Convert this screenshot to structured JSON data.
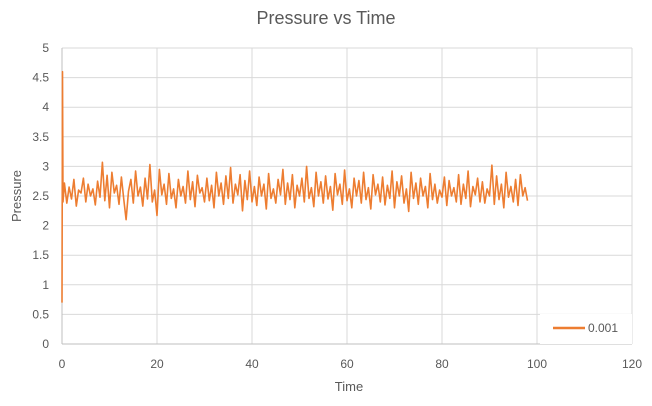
{
  "chart_data": {
    "type": "line",
    "title": "Pressure vs Time",
    "xlabel": "Time",
    "ylabel": "Pressure",
    "xlim": [
      0,
      120
    ],
    "ylim": [
      0,
      5
    ],
    "xticks": [
      "0",
      "20",
      "40",
      "60",
      "80",
      "100",
      "120"
    ],
    "yticks": [
      "0",
      "0.5",
      "1",
      "1.5",
      "2",
      "2.5",
      "3",
      "3.5",
      "4",
      "4.5",
      "5"
    ],
    "grid": true,
    "legend_position": "bottom-right",
    "series": [
      {
        "name": "0.001",
        "color": "#ED7D31",
        "x_start": 0.5,
        "x_step": 0.5,
        "initial_points": [
          [
            0,
            0.7
          ],
          [
            0.1,
            4.6
          ],
          [
            0.2,
            2.4
          ]
        ],
        "values": [
          2.72,
          2.38,
          2.65,
          2.45,
          2.78,
          2.33,
          2.6,
          2.55,
          2.8,
          2.4,
          2.7,
          2.5,
          2.62,
          2.35,
          2.75,
          2.48,
          3.07,
          2.42,
          2.85,
          2.3,
          2.9,
          2.55,
          2.68,
          2.36,
          2.82,
          2.44,
          2.1,
          2.58,
          2.78,
          2.38,
          2.92,
          2.5,
          2.65,
          2.33,
          2.8,
          2.45,
          3.03,
          2.4,
          2.6,
          2.17,
          2.95,
          2.52,
          2.7,
          2.36,
          2.88,
          2.46,
          2.62,
          2.3,
          2.78,
          2.5,
          2.66,
          2.38,
          2.92,
          2.44,
          2.74,
          2.32,
          2.85,
          2.55,
          2.64,
          2.4,
          2.8,
          2.42,
          2.68,
          2.3,
          2.9,
          2.5,
          2.72,
          2.36,
          2.84,
          2.46,
          2.98,
          2.38,
          2.7,
          2.52,
          2.86,
          2.25,
          2.76,
          2.44,
          2.92,
          2.4,
          2.66,
          2.34,
          2.82,
          2.5,
          2.7,
          2.28,
          2.88,
          2.46,
          2.62,
          2.38,
          2.78,
          2.52,
          2.95,
          2.36,
          2.72,
          2.44,
          2.86,
          2.3,
          2.68,
          2.5,
          2.8,
          2.4,
          3.0,
          2.46,
          2.64,
          2.32,
          2.9,
          2.5,
          2.74,
          2.38,
          2.84,
          2.45,
          2.66,
          2.26,
          2.88,
          2.52,
          2.7,
          2.36,
          2.94,
          2.42,
          2.62,
          2.3,
          2.8,
          2.5,
          2.76,
          2.38,
          2.9,
          2.44,
          2.64,
          2.28,
          2.86,
          2.52,
          2.7,
          2.4,
          2.82,
          2.35,
          2.68,
          2.46,
          2.92,
          2.3,
          2.74,
          2.5,
          2.84,
          2.38,
          2.62,
          2.24,
          2.9,
          2.46,
          2.72,
          2.36,
          2.8,
          2.5,
          2.66,
          2.3,
          2.88,
          2.44,
          2.7,
          2.38,
          2.6,
          2.48,
          2.82,
          2.34,
          2.76,
          2.5,
          2.64,
          2.4,
          2.86,
          2.36,
          2.7,
          2.46,
          2.92,
          2.32,
          2.66,
          2.52,
          2.8,
          2.4,
          2.74,
          2.38,
          2.62,
          2.5,
          3.02,
          2.36,
          2.84,
          2.44,
          2.7,
          2.3,
          2.9,
          2.48,
          2.66,
          2.4,
          2.78,
          2.34,
          2.86,
          2.5,
          2.64,
          2.42
        ]
      }
    ]
  }
}
